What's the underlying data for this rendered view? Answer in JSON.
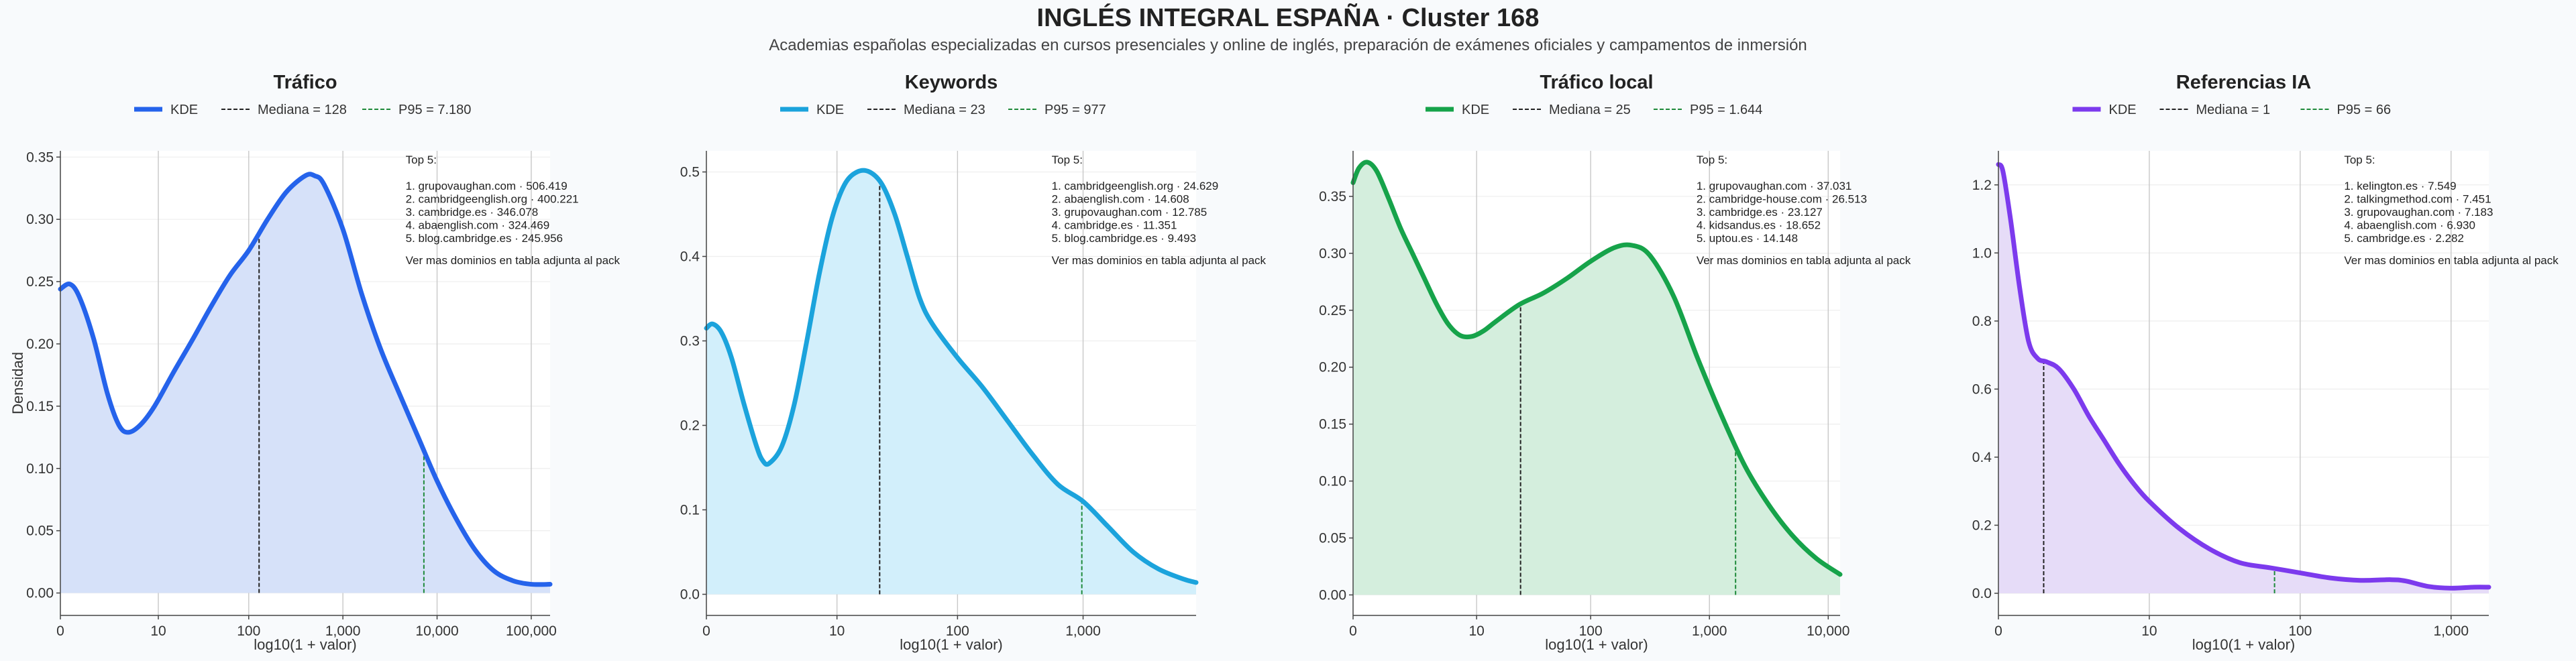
{
  "title": "INGLÉS INTEGRAL ESPAÑA · Cluster 168",
  "subtitle": "Academias españolas especializadas en cursos presenciales y online de inglés, preparación de exámenes oficiales y campamentos de inmersión",
  "colors": {
    "median_line": "#222222",
    "p95_line": "#1e8a3a",
    "background": "#f8fafc"
  },
  "chart_data": [
    {
      "type": "area",
      "title": "Tráfico",
      "xlabel": "log10(1 + valor)",
      "ylabel": "Densidad",
      "color": "#2563eb",
      "fill": "#d6e1f9",
      "xlim": [
        0,
        5.2
      ],
      "ylim": [
        -0.018,
        0.355
      ],
      "xticks": [
        {
          "v": 0,
          "l": "0"
        },
        {
          "v": 1.04,
          "l": "10"
        },
        {
          "v": 2.0,
          "l": "100"
        },
        {
          "v": 3.0,
          "l": "1,000"
        },
        {
          "v": 4.0,
          "l": "10,000"
        },
        {
          "v": 5.0,
          "l": "100,000"
        }
      ],
      "yticks": [
        {
          "v": 0,
          "l": "0.00"
        },
        {
          "v": 0.05,
          "l": "0.05"
        },
        {
          "v": 0.1,
          "l": "0.10"
        },
        {
          "v": 0.15,
          "l": "0.15"
        },
        {
          "v": 0.2,
          "l": "0.20"
        },
        {
          "v": 0.25,
          "l": "0.25"
        },
        {
          "v": 0.3,
          "l": "0.30"
        },
        {
          "v": 0.35,
          "l": "0.35"
        }
      ],
      "kde": [
        [
          0,
          0.244
        ],
        [
          0.1,
          0.248
        ],
        [
          0.2,
          0.238
        ],
        [
          0.35,
          0.205
        ],
        [
          0.5,
          0.16
        ],
        [
          0.62,
          0.135
        ],
        [
          0.72,
          0.129
        ],
        [
          0.85,
          0.135
        ],
        [
          1.0,
          0.15
        ],
        [
          1.2,
          0.177
        ],
        [
          1.4,
          0.203
        ],
        [
          1.6,
          0.23
        ],
        [
          1.8,
          0.255
        ],
        [
          2.0,
          0.275
        ],
        [
          2.2,
          0.3
        ],
        [
          2.4,
          0.322
        ],
        [
          2.6,
          0.335
        ],
        [
          2.7,
          0.335
        ],
        [
          2.8,
          0.328
        ],
        [
          3.0,
          0.292
        ],
        [
          3.2,
          0.24
        ],
        [
          3.4,
          0.196
        ],
        [
          3.6,
          0.16
        ],
        [
          3.8,
          0.125
        ],
        [
          4.0,
          0.09
        ],
        [
          4.2,
          0.06
        ],
        [
          4.4,
          0.035
        ],
        [
          4.6,
          0.018
        ],
        [
          4.8,
          0.01
        ],
        [
          5.0,
          0.007
        ],
        [
          5.2,
          0.007
        ]
      ],
      "median": {
        "x": 2.11,
        "label": "Mediana = 128"
      },
      "p95": {
        "x": 3.86,
        "label": "P95 = 7.180"
      },
      "legend": "KDE",
      "top_title": "Top 5:",
      "top": [
        "1. grupovaughan.com · 506.419",
        "2. cambridgeenglish.org · 400.221",
        "3. cambridge.es · 346.078",
        "4. abaenglish.com · 324.469",
        "5. blog.cambridge.es · 245.956"
      ],
      "note": "Ver mas dominios en tabla adjunta al pack"
    },
    {
      "type": "area",
      "title": "Keywords",
      "xlabel": "log10(1 + valor)",
      "ylabel": "",
      "color": "#1ba3dc",
      "fill": "#d2effb",
      "xlim": [
        0,
        3.9
      ],
      "ylim": [
        -0.025,
        0.525
      ],
      "xticks": [
        {
          "v": 0,
          "l": "0"
        },
        {
          "v": 1.04,
          "l": "10"
        },
        {
          "v": 2.0,
          "l": "100"
        },
        {
          "v": 3.0,
          "l": "1,000"
        }
      ],
      "yticks": [
        {
          "v": 0,
          "l": "0.0"
        },
        {
          "v": 0.1,
          "l": "0.1"
        },
        {
          "v": 0.2,
          "l": "0.2"
        },
        {
          "v": 0.3,
          "l": "0.3"
        },
        {
          "v": 0.4,
          "l": "0.4"
        },
        {
          "v": 0.5,
          "l": "0.5"
        }
      ],
      "kde": [
        [
          0,
          0.315
        ],
        [
          0.05,
          0.32
        ],
        [
          0.12,
          0.31
        ],
        [
          0.2,
          0.28
        ],
        [
          0.3,
          0.225
        ],
        [
          0.4,
          0.175
        ],
        [
          0.45,
          0.158
        ],
        [
          0.5,
          0.155
        ],
        [
          0.6,
          0.175
        ],
        [
          0.7,
          0.225
        ],
        [
          0.8,
          0.3
        ],
        [
          0.9,
          0.38
        ],
        [
          1.0,
          0.445
        ],
        [
          1.1,
          0.485
        ],
        [
          1.2,
          0.5
        ],
        [
          1.3,
          0.5
        ],
        [
          1.4,
          0.485
        ],
        [
          1.5,
          0.45
        ],
        [
          1.6,
          0.4
        ],
        [
          1.7,
          0.35
        ],
        [
          1.8,
          0.32
        ],
        [
          2.0,
          0.28
        ],
        [
          2.2,
          0.245
        ],
        [
          2.4,
          0.205
        ],
        [
          2.6,
          0.165
        ],
        [
          2.8,
          0.13
        ],
        [
          3.0,
          0.11
        ],
        [
          3.2,
          0.08
        ],
        [
          3.4,
          0.05
        ],
        [
          3.6,
          0.03
        ],
        [
          3.8,
          0.018
        ],
        [
          3.9,
          0.014
        ]
      ],
      "median": {
        "x": 1.38,
        "label": "Mediana = 23"
      },
      "p95": {
        "x": 2.99,
        "label": "P95 = 977"
      },
      "legend": "KDE",
      "top_title": "Top 5:",
      "top": [
        "1. cambridgeenglish.org · 24.629",
        "2. abaenglish.com · 14.608",
        "3. grupovaughan.com · 12.785",
        "4. cambridge.es · 11.351",
        "5. blog.cambridge.es · 9.493"
      ],
      "note": "Ver mas dominios en tabla adjunta al pack"
    },
    {
      "type": "area",
      "title": "Tráfico local",
      "xlabel": "log10(1 + valor)",
      "ylabel": "",
      "color": "#16a34a",
      "fill": "#d4eedd",
      "xlim": [
        0,
        4.1
      ],
      "ylim": [
        -0.018,
        0.39
      ],
      "xticks": [
        {
          "v": 0,
          "l": "0"
        },
        {
          "v": 1.04,
          "l": "10"
        },
        {
          "v": 2.0,
          "l": "100"
        },
        {
          "v": 3.0,
          "l": "1,000"
        },
        {
          "v": 4.0,
          "l": "10,000"
        }
      ],
      "yticks": [
        {
          "v": 0,
          "l": "0.00"
        },
        {
          "v": 0.05,
          "l": "0.05"
        },
        {
          "v": 0.1,
          "l": "0.10"
        },
        {
          "v": 0.15,
          "l": "0.15"
        },
        {
          "v": 0.2,
          "l": "0.20"
        },
        {
          "v": 0.25,
          "l": "0.25"
        },
        {
          "v": 0.3,
          "l": "0.30"
        },
        {
          "v": 0.35,
          "l": "0.35"
        }
      ],
      "kde": [
        [
          0,
          0.362
        ],
        [
          0.05,
          0.375
        ],
        [
          0.12,
          0.38
        ],
        [
          0.2,
          0.372
        ],
        [
          0.3,
          0.348
        ],
        [
          0.4,
          0.322
        ],
        [
          0.5,
          0.3
        ],
        [
          0.6,
          0.278
        ],
        [
          0.7,
          0.256
        ],
        [
          0.8,
          0.238
        ],
        [
          0.9,
          0.228
        ],
        [
          1.0,
          0.227
        ],
        [
          1.1,
          0.232
        ],
        [
          1.2,
          0.24
        ],
        [
          1.4,
          0.255
        ],
        [
          1.6,
          0.265
        ],
        [
          1.8,
          0.278
        ],
        [
          2.0,
          0.293
        ],
        [
          2.2,
          0.305
        ],
        [
          2.35,
          0.307
        ],
        [
          2.5,
          0.298
        ],
        [
          2.7,
          0.262
        ],
        [
          2.9,
          0.208
        ],
        [
          3.1,
          0.158
        ],
        [
          3.3,
          0.113
        ],
        [
          3.5,
          0.079
        ],
        [
          3.7,
          0.052
        ],
        [
          3.9,
          0.032
        ],
        [
          4.1,
          0.018
        ]
      ],
      "median": {
        "x": 1.41,
        "label": "Mediana = 25"
      },
      "p95": {
        "x": 3.22,
        "label": "P95 = 1.644"
      },
      "legend": "KDE",
      "top_title": "Top 5:",
      "top": [
        "1. grupovaughan.com · 37.031",
        "2. cambridge-house.com · 26.513",
        "3. cambridge.es · 23.127",
        "4. kidsandus.es · 18.652",
        "5. uptou.es · 14.148"
      ],
      "note": "Ver mas dominios en tabla adjunta al pack"
    },
    {
      "type": "area",
      "title": "Referencias IA",
      "xlabel": "log10(1 + valor)",
      "ylabel": "",
      "color": "#7c3aed",
      "fill": "#e6dcf8",
      "xlim": [
        0,
        3.25
      ],
      "ylim": [
        -0.065,
        1.3
      ],
      "xticks": [
        {
          "v": 0,
          "l": "0"
        },
        {
          "v": 1.0,
          "l": "10"
        },
        {
          "v": 2.0,
          "l": "100"
        },
        {
          "v": 3.0,
          "l": "1,000"
        }
      ],
      "yticks": [
        {
          "v": 0,
          "l": "0.0"
        },
        {
          "v": 0.2,
          "l": "0.2"
        },
        {
          "v": 0.4,
          "l": "0.4"
        },
        {
          "v": 0.6,
          "l": "0.6"
        },
        {
          "v": 0.8,
          "l": "0.8"
        },
        {
          "v": 1.0,
          "l": "1.0"
        },
        {
          "v": 1.2,
          "l": "1.2"
        }
      ],
      "kde": [
        [
          0,
          1.26
        ],
        [
          0.03,
          1.24
        ],
        [
          0.08,
          1.1
        ],
        [
          0.14,
          0.9
        ],
        [
          0.2,
          0.74
        ],
        [
          0.26,
          0.69
        ],
        [
          0.32,
          0.68
        ],
        [
          0.4,
          0.66
        ],
        [
          0.5,
          0.6
        ],
        [
          0.6,
          0.52
        ],
        [
          0.7,
          0.45
        ],
        [
          0.8,
          0.38
        ],
        [
          0.9,
          0.32
        ],
        [
          1.0,
          0.27
        ],
        [
          1.2,
          0.19
        ],
        [
          1.4,
          0.13
        ],
        [
          1.6,
          0.09
        ],
        [
          1.8,
          0.075
        ],
        [
          2.0,
          0.06
        ],
        [
          2.2,
          0.045
        ],
        [
          2.4,
          0.038
        ],
        [
          2.6,
          0.04
        ],
        [
          2.7,
          0.036
        ],
        [
          2.85,
          0.02
        ],
        [
          3.0,
          0.015
        ],
        [
          3.15,
          0.018
        ],
        [
          3.25,
          0.018
        ]
      ],
      "median": {
        "x": 0.3,
        "label": "Mediana = 1"
      },
      "p95": {
        "x": 1.83,
        "label": "P95 = 66"
      },
      "legend": "KDE",
      "top_title": "Top 5:",
      "top": [
        "1. kelington.es · 7.549",
        "2. talkingmethod.com · 7.451",
        "3. grupovaughan.com · 7.183",
        "4. abaenglish.com · 6.930",
        "5. cambridge.es · 2.282"
      ],
      "note": "Ver mas dominios en tabla adjunta al pack"
    }
  ]
}
